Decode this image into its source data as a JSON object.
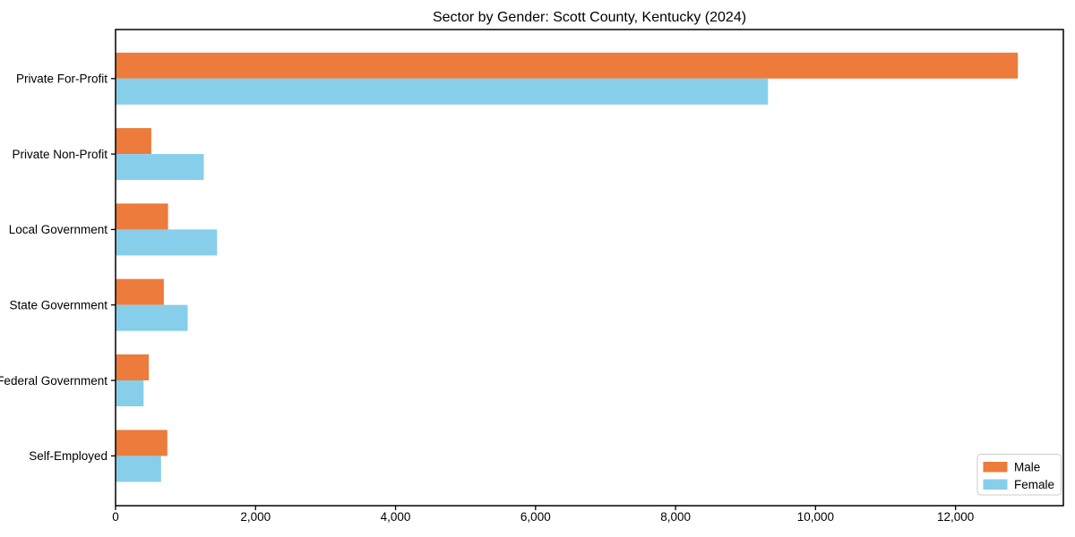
{
  "title": "Sector by Gender: Scott County, Kentucky (2024)",
  "colors": {
    "male": "#EC7B3C",
    "female": "#87CEEB",
    "axis": "#000000",
    "text": "#000000",
    "legend_border": "#CCCCCC",
    "background": "#FFFFFF"
  },
  "legend": {
    "position": "lower right",
    "entries": [
      {
        "label": "Male",
        "color": "#EC7B3C"
      },
      {
        "label": "Female",
        "color": "#87CEEB"
      }
    ]
  },
  "chart_data": {
    "type": "bar",
    "orientation": "horizontal",
    "title": "Sector by Gender: Scott County, Kentucky (2024)",
    "xlabel": "",
    "ylabel": "",
    "categories": [
      "Private For-Profit",
      "Private Non-Profit",
      "Local Government",
      "State Government",
      "Federal Government",
      "Self-Employed"
    ],
    "series": [
      {
        "name": "Male",
        "color": "#EC7B3C",
        "values": [
          12890,
          510,
          750,
          690,
          475,
          740
        ]
      },
      {
        "name": "Female",
        "color": "#87CEEB",
        "values": [
          9320,
          1260,
          1450,
          1030,
          400,
          650
        ]
      }
    ],
    "xlim": [
      0,
      13540
    ],
    "x_ticks": [
      0,
      2000,
      4000,
      6000,
      8000,
      10000,
      12000
    ],
    "x_tick_labels": [
      "0",
      "2,000",
      "4,000",
      "6,000",
      "8,000",
      "10,000",
      "12,000"
    ],
    "grid": false,
    "legend_position": "lower right"
  }
}
